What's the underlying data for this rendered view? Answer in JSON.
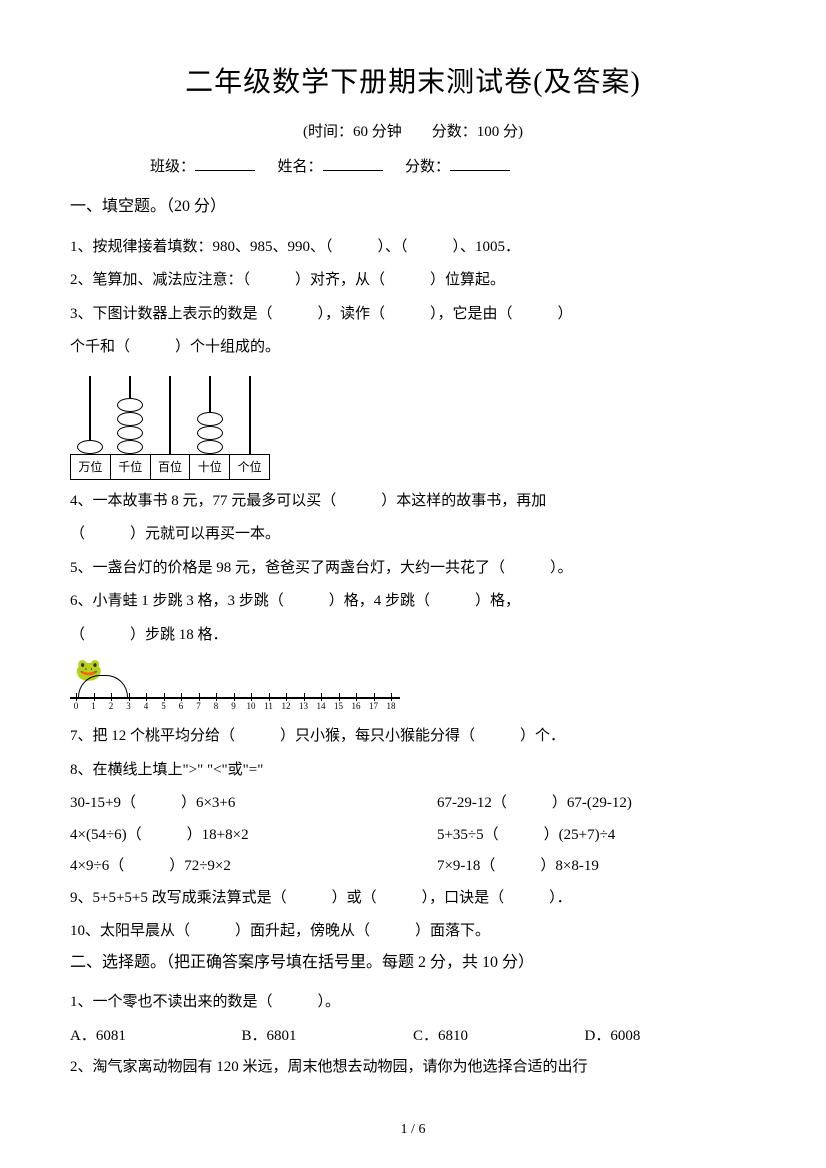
{
  "title": "二年级数学下册期末测试卷(及答案)",
  "subtitle": "(时间：60 分钟　　分数：100 分)",
  "info": {
    "class": "班级：",
    "name": "姓名：",
    "score": "分数："
  },
  "section1": "一、填空题。（20 分）",
  "q1": "1、按规律接着填数：980、985、990、（　　　）、（　　　）、1005．",
  "q2": "2、笔算加、减法应注意：（　　　）对齐，从（　　　）位算起。",
  "q3a": "3、下图计数器上表示的数是（　　　），读作（　　　），它是由（　　　）",
  "q3b": "个千和（　　　）个十组成的。",
  "abacus_labels": [
    "万位",
    "千位",
    "百位",
    "十位",
    "个位"
  ],
  "q4a": "4、一本故事书 8 元，77 元最多可以买（　　　）本这样的故事书，再加",
  "q4b": "（　　　）元就可以再买一本。",
  "q5": "5、一盏台灯的价格是 98 元，爸爸买了两盏台灯，大约一共花了（　　　）。",
  "q6a": "6、小青蛙 1 步跳 3 格，3 步跳（　　　）格，4 步跳（　　　）格，",
  "q6b": "（　　　）步跳 18 格．",
  "q7": "7、把 12 个桃平均分给（　　　）只小猴，每只小猴能分得（　　　）个．",
  "q8": "8、在横线上填上\">\" \"<\"或\"=\"",
  "q8r1a": "30-15+9（　　　）6×3+6",
  "q8r1b": "67-29-12（　　　）67-(29-12)",
  "q8r2a": "4×(54÷6)（　　　）18+8×2",
  "q8r2b": "5+35÷5（　　　）(25+7)÷4",
  "q8r3a": "4×9÷6（　　　）72÷9×2",
  "q8r3b": "7×9-18（　　　）8×8-19",
  "q9": "9、5+5+5+5 改写成乘法算式是（　　　）或（　　　），口诀是（　　　）．",
  "q10": "10、太阳早晨从（　　　）面升起，傍晚从（　　　）面落下。",
  "section2": "二、选择题。（把正确答案序号填在括号里。每题 2 分，共 10 分）",
  "mc1": "1、一个零也不读出来的数是（　　　）。",
  "mc1_opts": {
    "a": "A．6081",
    "b": "B．6801",
    "c": "C．6810",
    "d": "D．6008"
  },
  "mc2": "2、淘气家离动物园有 120 米远，周末他想去动物园，请你为他选择合适的出行",
  "page": "1 / 6"
}
